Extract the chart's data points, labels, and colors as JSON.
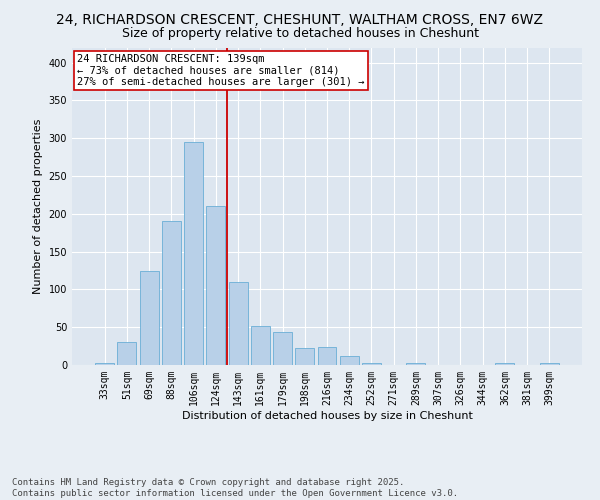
{
  "title_line1": "24, RICHARDSON CRESCENT, CHESHUNT, WALTHAM CROSS, EN7 6WZ",
  "title_line2": "Size of property relative to detached houses in Cheshunt",
  "xlabel": "Distribution of detached houses by size in Cheshunt",
  "ylabel": "Number of detached properties",
  "categories": [
    "33sqm",
    "51sqm",
    "69sqm",
    "88sqm",
    "106sqm",
    "124sqm",
    "143sqm",
    "161sqm",
    "179sqm",
    "198sqm",
    "216sqm",
    "234sqm",
    "252sqm",
    "271sqm",
    "289sqm",
    "307sqm",
    "326sqm",
    "344sqm",
    "362sqm",
    "381sqm",
    "399sqm"
  ],
  "values": [
    3,
    30,
    125,
    190,
    295,
    210,
    110,
    52,
    44,
    23,
    24,
    12,
    3,
    0,
    3,
    0,
    0,
    0,
    3,
    0,
    3
  ],
  "bar_color": "#b8d0e8",
  "bar_edge_color": "#6aaed6",
  "vline_x": 5.5,
  "vline_color": "#cc0000",
  "annotation_text": "24 RICHARDSON CRESCENT: 139sqm\n← 73% of detached houses are smaller (814)\n27% of semi-detached houses are larger (301) →",
  "annotation_box_color": "#ffffff",
  "annotation_box_edge_color": "#cc0000",
  "ylim": [
    0,
    420
  ],
  "yticks": [
    0,
    50,
    100,
    150,
    200,
    250,
    300,
    350,
    400
  ],
  "bg_color": "#e8eef4",
  "plot_bg_color": "#dde6f0",
  "footer": "Contains HM Land Registry data © Crown copyright and database right 2025.\nContains public sector information licensed under the Open Government Licence v3.0.",
  "title_fontsize": 10,
  "subtitle_fontsize": 9,
  "axis_label_fontsize": 8,
  "tick_fontsize": 7,
  "footer_fontsize": 6.5,
  "annotation_fontsize": 7.5
}
